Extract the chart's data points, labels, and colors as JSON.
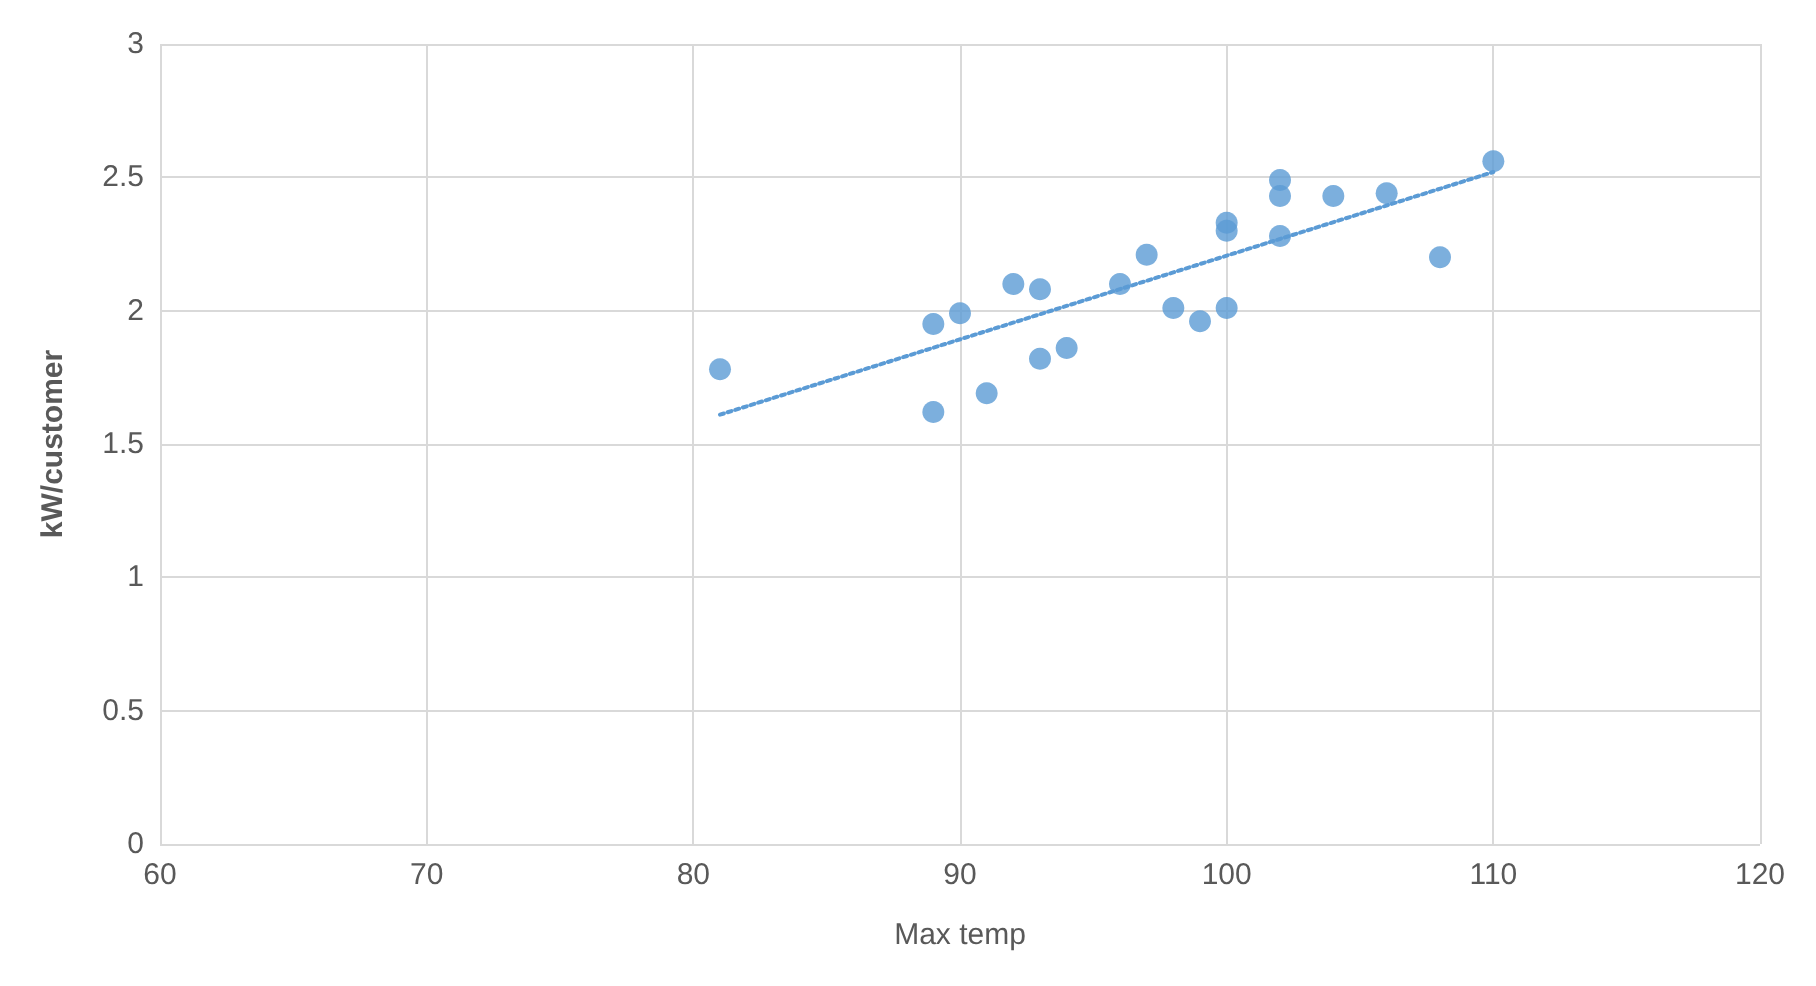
{
  "chart_data": {
    "type": "scatter",
    "xlabel": "Max temp",
    "ylabel": "kW/customer",
    "xlim": [
      60,
      120
    ],
    "xticks": [
      60,
      70,
      80,
      90,
      100,
      110,
      120
    ],
    "ylim": [
      0,
      3
    ],
    "yticks": [
      0,
      0.5,
      1,
      1.5,
      2,
      2.5,
      3
    ],
    "grid": true,
    "marker": "circle",
    "series": [
      {
        "type": "scatter",
        "color": "#5b9bd5",
        "x": [
          81,
          89,
          89,
          90,
          91,
          92,
          93,
          93,
          94,
          96,
          97,
          98,
          99,
          100,
          100,
          100,
          102,
          102,
          102,
          104,
          106,
          108,
          110
        ],
        "values": [
          1.78,
          1.95,
          1.62,
          1.99,
          1.69,
          2.1,
          2.08,
          1.82,
          1.86,
          2.1,
          2.21,
          2.01,
          1.96,
          2.33,
          2.3,
          2.01,
          2.49,
          2.43,
          2.28,
          2.43,
          2.44,
          2.2,
          2.56
        ]
      },
      {
        "type": "line",
        "color": "#5b9bd5",
        "line_style": "dotted",
        "marker": "none",
        "x": [
          81,
          110
        ],
        "values": [
          1.61,
          2.52
        ]
      }
    ]
  }
}
